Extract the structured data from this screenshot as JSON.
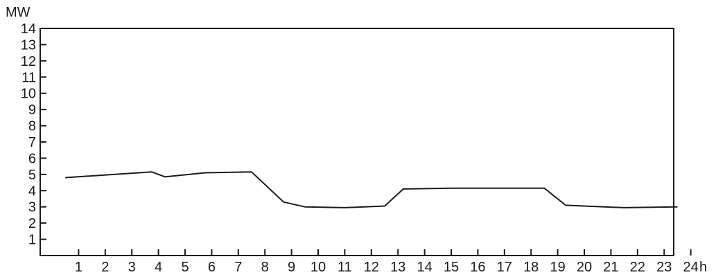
{
  "chart_data": {
    "type": "line",
    "ylabel": "MW",
    "xlabel": "h",
    "ylim": [
      0,
      14
    ],
    "yticks": [
      "1",
      "2",
      "3",
      "4",
      "5",
      "6",
      "7",
      "8",
      "9",
      "10",
      "11",
      "12",
      "13",
      "14"
    ],
    "xticks": [
      "1",
      "2",
      "3",
      "4",
      "5",
      "6",
      "7",
      "8",
      "9",
      "10",
      "11",
      "12",
      "13",
      "14",
      "15",
      "16",
      "17",
      "18",
      "19",
      "20",
      "21",
      "22",
      "23",
      "24"
    ],
    "grid": false,
    "series": [
      {
        "color": "#1a1a1a",
        "points": [
          {
            "x": 0.5,
            "y": 4.8
          },
          {
            "x": 3.75,
            "y": 5.15
          },
          {
            "x": 4.25,
            "y": 4.85
          },
          {
            "x": 5.75,
            "y": 5.1
          },
          {
            "x": 7.5,
            "y": 5.15
          },
          {
            "x": 8.7,
            "y": 3.3
          },
          {
            "x": 9.5,
            "y": 3.0
          },
          {
            "x": 11.0,
            "y": 2.95
          },
          {
            "x": 12.5,
            "y": 3.05
          },
          {
            "x": 13.2,
            "y": 4.1
          },
          {
            "x": 15.0,
            "y": 4.15
          },
          {
            "x": 18.5,
            "y": 4.15
          },
          {
            "x": 19.3,
            "y": 3.1
          },
          {
            "x": 21.5,
            "y": 2.95
          },
          {
            "x": 23.5,
            "y": 3.0
          }
        ]
      }
    ]
  }
}
